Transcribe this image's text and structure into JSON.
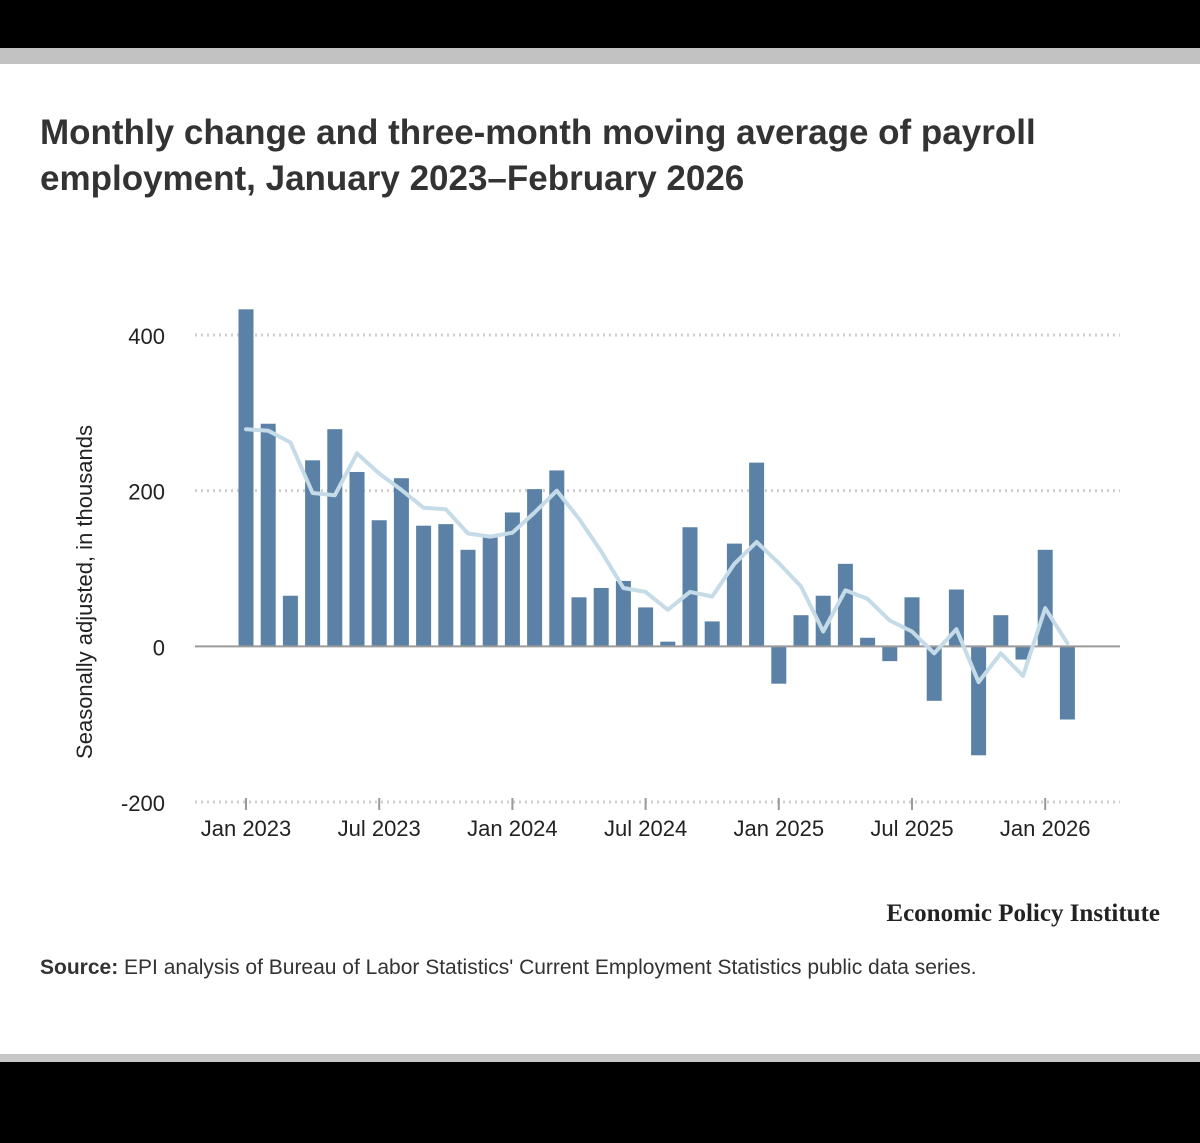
{
  "chart_data": {
    "type": "bar",
    "title": "Monthly change and three-month moving average of payroll employment, January 2023–February 2026",
    "ylabel": "Seasonally adjusted, in thousands",
    "xlabel": "",
    "ylim": [
      -200,
      400
    ],
    "yticks": [
      {
        "value": 400,
        "label": "400"
      },
      {
        "value": 200,
        "label": "200"
      },
      {
        "value": 0,
        "label": "0"
      },
      {
        "value": -200,
        "label": "-200"
      }
    ],
    "xticks": [
      {
        "index": 0,
        "label": "Jan 2023"
      },
      {
        "index": 6,
        "label": "Jul 2023"
      },
      {
        "index": 12,
        "label": "Jan 2024"
      },
      {
        "index": 18,
        "label": "Jul 2024"
      },
      {
        "index": 24,
        "label": "Jan 2025"
      },
      {
        "index": 30,
        "label": "Jul 2025"
      },
      {
        "index": 36,
        "label": "Jan 2026"
      }
    ],
    "categories": [
      "Jan 2023",
      "Feb 2023",
      "Mar 2023",
      "Apr 2023",
      "May 2023",
      "Jun 2023",
      "Jul 2023",
      "Aug 2023",
      "Sep 2023",
      "Oct 2023",
      "Nov 2023",
      "Dec 2023",
      "Jan 2024",
      "Feb 2024",
      "Mar 2024",
      "Apr 2024",
      "May 2024",
      "Jun 2024",
      "Jul 2024",
      "Aug 2024",
      "Sep 2024",
      "Oct 2024",
      "Nov 2024",
      "Dec 2024",
      "Jan 2025",
      "Feb 2025",
      "Mar 2025",
      "Apr 2025",
      "May 2025",
      "Jun 2025",
      "Jul 2025",
      "Aug 2025",
      "Sep 2025",
      "Oct 2025",
      "Nov 2025",
      "Dec 2025",
      "Jan 2026",
      "Feb 2026"
    ],
    "series": [
      {
        "name": "Monthly change",
        "type": "bar",
        "color": "#5b82a6",
        "values": [
          433,
          286,
          65,
          239,
          279,
          224,
          162,
          216,
          155,
          157,
          124,
          143,
          172,
          202,
          226,
          63,
          75,
          84,
          50,
          6,
          153,
          32,
          132,
          236,
          -48,
          40,
          65,
          106,
          11,
          -19,
          63,
          -70,
          73,
          -140,
          40,
          -17,
          124,
          -94
        ]
      },
      {
        "name": "Three-month moving average",
        "type": "line",
        "color": "#c5dbe8",
        "values": [
          279,
          277,
          262,
          197,
          194,
          248,
          222,
          201,
          178,
          176,
          145,
          141,
          146,
          172,
          200,
          164,
          122,
          75,
          70,
          47,
          70,
          64,
          106,
          134,
          107,
          77,
          19,
          72,
          61,
          33,
          19,
          -9,
          22,
          -46,
          -9,
          -38,
          49,
          4
        ]
      }
    ]
  },
  "publisher": "Economic Policy Institute",
  "source": {
    "label": "Source:",
    "text": " EPI analysis of Bureau of Labor Statistics' Current Employment Statistics public data series."
  }
}
